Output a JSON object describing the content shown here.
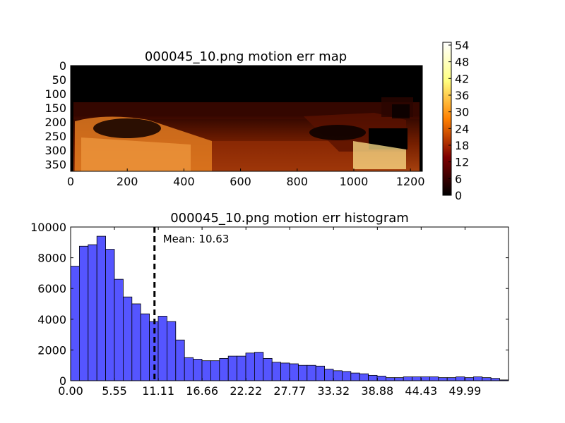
{
  "chart_data": [
    {
      "type": "heatmap",
      "title": "000045_10.png motion err map",
      "x_ticks": [
        "0",
        "200",
        "400",
        "600",
        "800",
        "1000",
        "1200"
      ],
      "x_tick_values": [
        0,
        200,
        400,
        600,
        800,
        1000,
        1200
      ],
      "y_ticks": [
        "0",
        "50",
        "100",
        "150",
        "200",
        "250",
        "300",
        "350"
      ],
      "y_tick_values": [
        0,
        50,
        100,
        150,
        200,
        250,
        300,
        350
      ],
      "xlim": [
        0,
        1242
      ],
      "ylim": [
        375,
        0
      ],
      "colormap": "afmhot",
      "colorbar": {
        "ticks": [
          "0",
          "6",
          "12",
          "18",
          "24",
          "30",
          "36",
          "42",
          "48",
          "54"
        ],
        "tick_values": [
          0,
          6,
          12,
          18,
          24,
          30,
          36,
          42,
          48,
          54
        ],
        "range": [
          0,
          55
        ]
      }
    },
    {
      "type": "bar",
      "title": "000045_10.png motion err histogram",
      "bar_color": "#5555ff",
      "bin_width": 1.11,
      "bin_start": 0,
      "values": [
        7450,
        8750,
        8850,
        9400,
        8550,
        6600,
        5450,
        5000,
        4350,
        3850,
        4200,
        3850,
        2650,
        1500,
        1400,
        1300,
        1300,
        1450,
        1600,
        1600,
        1800,
        1850,
        1450,
        1200,
        1150,
        1100,
        1000,
        1000,
        950,
        750,
        650,
        600,
        500,
        450,
        350,
        300,
        200,
        200,
        250,
        250,
        250,
        250,
        200,
        200,
        250,
        200,
        250,
        200,
        150,
        50
      ],
      "x_ticks": [
        "0.00",
        "5.55",
        "11.11",
        "16.66",
        "22.22",
        "27.77",
        "33.32",
        "38.88",
        "44.43",
        "49.99"
      ],
      "x_tick_values": [
        0.0,
        5.55,
        11.11,
        16.66,
        22.22,
        27.77,
        33.32,
        38.88,
        44.43,
        49.99
      ],
      "y_ticks": [
        "0",
        "2000",
        "4000",
        "6000",
        "8000",
        "10000"
      ],
      "y_tick_values": [
        0,
        2000,
        4000,
        6000,
        8000,
        10000
      ],
      "xlim": [
        0,
        55.5
      ],
      "ylim": [
        0,
        10000
      ],
      "mean_value": 10.63,
      "mean_label": "Mean: 10.63"
    }
  ]
}
